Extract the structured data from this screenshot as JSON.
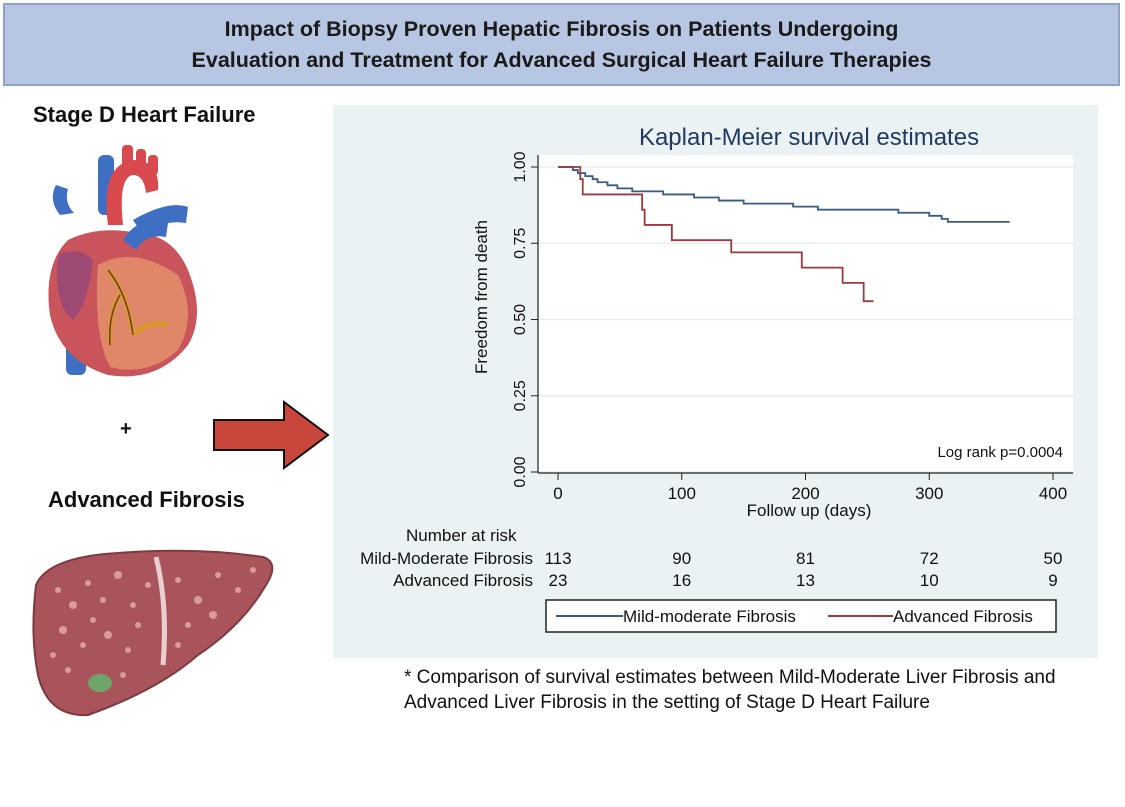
{
  "banner": {
    "line1": "Impact of Biopsy Proven Hepatic Fibrosis on Patients Undergoing",
    "line2": "Evaluation and Treatment for Advanced Surgical Heart Failure Therapies"
  },
  "left": {
    "heart_label": "Stage D Heart Failure",
    "plus": "+",
    "fibrosis_label": "Advanced Fibrosis",
    "icons": [
      "heart-illustration",
      "right-arrow",
      "liver-illustration"
    ]
  },
  "colors": {
    "banner_bg": "#b7c6e3",
    "panel_bg": "#eaf2f4",
    "mild_series": "#3b5a7e",
    "advanced_series": "#9b3a3f",
    "arrow": "#c9463d"
  },
  "chart_data": {
    "type": "line",
    "title": "Kaplan-Meier survival estimates",
    "xlabel": "Follow up (days)",
    "ylabel": "Freedom from death",
    "xlim": [
      0,
      400
    ],
    "ylim": [
      0,
      1
    ],
    "x_ticks": [
      "0",
      "100",
      "200",
      "300",
      "400"
    ],
    "y_ticks": [
      "0.00",
      "0.25",
      "0.50",
      "0.75",
      "1.00"
    ],
    "grid": "horizontal",
    "annotation": "Log rank p=0.0004",
    "series": [
      {
        "name": "Mild-moderate Fibrosis",
        "color": "#3b5a7e",
        "points": [
          [
            0,
            1.0
          ],
          [
            10,
            1.0
          ],
          [
            12,
            0.99
          ],
          [
            16,
            0.98
          ],
          [
            22,
            0.97
          ],
          [
            28,
            0.96
          ],
          [
            32,
            0.95
          ],
          [
            40,
            0.94
          ],
          [
            48,
            0.93
          ],
          [
            60,
            0.92
          ],
          [
            85,
            0.91
          ],
          [
            110,
            0.9
          ],
          [
            130,
            0.89
          ],
          [
            150,
            0.88
          ],
          [
            170,
            0.88
          ],
          [
            190,
            0.87
          ],
          [
            210,
            0.86
          ],
          [
            240,
            0.86
          ],
          [
            275,
            0.85
          ],
          [
            300,
            0.84
          ],
          [
            310,
            0.83
          ],
          [
            315,
            0.82
          ],
          [
            365,
            0.82
          ]
        ]
      },
      {
        "name": "Advanced Fibrosis",
        "color": "#9b3a3f",
        "points": [
          [
            0,
            1.0
          ],
          [
            15,
            1.0
          ],
          [
            18,
            0.96
          ],
          [
            20,
            0.91
          ],
          [
            62,
            0.91
          ],
          [
            68,
            0.86
          ],
          [
            70,
            0.81
          ],
          [
            90,
            0.81
          ],
          [
            92,
            0.76
          ],
          [
            138,
            0.76
          ],
          [
            140,
            0.72
          ],
          [
            195,
            0.72
          ],
          [
            197,
            0.67
          ],
          [
            228,
            0.67
          ],
          [
            230,
            0.62
          ],
          [
            245,
            0.62
          ],
          [
            247,
            0.56
          ],
          [
            255,
            0.56
          ]
        ]
      }
    ],
    "risk_table": {
      "header": "Number at risk",
      "rows": [
        {
          "label": "Mild-Moderate Fibrosis",
          "values": [
            "113",
            "90",
            "81",
            "72",
            "50"
          ]
        },
        {
          "label": "Advanced Fibrosis",
          "values": [
            "23",
            "16",
            "13",
            "10",
            "9"
          ]
        }
      ]
    },
    "legend": {
      "placement": "bottom",
      "entries": [
        "Mild-moderate Fibrosis",
        "Advanced Fibrosis"
      ]
    }
  },
  "footnote": "* Comparison of survival estimates between Mild-Moderate Liver Fibrosis and Advanced Liver Fibrosis in the setting of Stage D Heart Failure"
}
